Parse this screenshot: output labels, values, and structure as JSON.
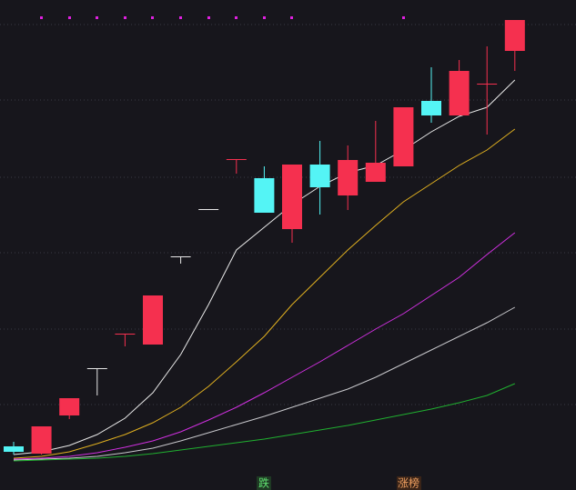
{
  "chart_data": {
    "type": "candlestick",
    "ylim": [
      0,
      510
    ],
    "candles": {
      "open": [
        19,
        11,
        53,
        105,
        143,
        131,
        228,
        280,
        335,
        314,
        258,
        329,
        295,
        310,
        327,
        399,
        383,
        418,
        454
      ],
      "high": [
        24,
        41,
        72,
        105,
        143,
        185,
        228,
        280,
        335,
        327,
        329,
        355,
        350,
        377,
        392,
        436,
        444,
        459,
        488
      ],
      "low": [
        10,
        10,
        49,
        75,
        129,
        131,
        220,
        280,
        319,
        276,
        243,
        274,
        279,
        310,
        327,
        375,
        383,
        362,
        432
      ],
      "close": [
        13,
        41,
        72,
        105,
        143,
        185,
        228,
        280,
        335,
        276,
        329,
        304,
        334,
        331,
        392,
        383,
        432,
        418,
        488
      ],
      "colors": [
        "#54f4f5",
        "#f5304f",
        "#f5304f",
        "#e8e8e8",
        "#f5304f",
        "#f5304f",
        "#e8e8e8",
        "#e8e8e8",
        "#f5304f",
        "#54f4f5",
        "#f5304f",
        "#54f4f5",
        "#f5304f",
        "#f5304f",
        "#f5304f",
        "#54f4f5",
        "#f5304f",
        "#f5304f",
        "#f5304f"
      ]
    },
    "series": [
      {
        "color": "#e8e8e8",
        "values": [
          10,
          13,
          20,
          32,
          50,
          78,
          120,
          175,
          235,
          260,
          285,
          305,
          320,
          328,
          345,
          365,
          382,
          392,
          422
        ]
      },
      {
        "color": "#e0b020",
        "values": [
          6,
          8,
          13,
          22,
          32,
          45,
          62,
          85,
          112,
          140,
          175,
          205,
          235,
          262,
          288,
          308,
          328,
          345,
          368
        ]
      },
      {
        "color": "#d030e0",
        "values": [
          5,
          6,
          8,
          12,
          18,
          25,
          35,
          48,
          62,
          78,
          95,
          112,
          130,
          148,
          165,
          185,
          205,
          230,
          254
        ]
      },
      {
        "color": "#c8c8cc",
        "values": [
          4,
          5,
          6,
          8,
          12,
          17,
          25,
          34,
          43,
          52,
          62,
          72,
          82,
          95,
          110,
          125,
          140,
          155,
          172
        ]
      },
      {
        "color": "#20b030",
        "values": [
          3,
          4,
          5,
          6,
          8,
          11,
          15,
          19,
          23,
          27,
          32,
          37,
          42,
          48,
          54,
          60,
          67,
          75,
          88
        ]
      }
    ],
    "annotations": [
      "跌",
      "涨榜"
    ]
  }
}
